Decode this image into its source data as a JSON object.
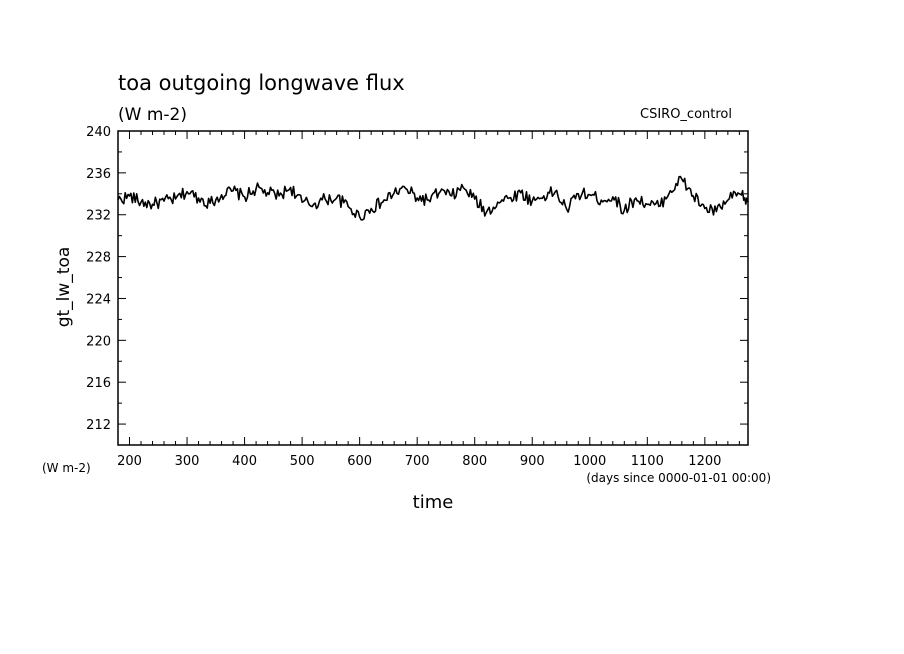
{
  "chart_data": {
    "type": "line",
    "title": "toa outgoing longwave flux",
    "subtitle": "(W m-2)",
    "annotation": "CSIRO_control",
    "ylabel": "gt_lw_toa",
    "yunit": "(W m-2)",
    "xlabel": "time",
    "xunit": "(days since 0000-01-01 00:00)",
    "xlim": [
      180,
      1275
    ],
    "ylim": [
      210,
      240
    ],
    "xticks": [
      200,
      300,
      400,
      500,
      600,
      700,
      800,
      900,
      1000,
      1100,
      1200
    ],
    "yticks": [
      212,
      216,
      220,
      224,
      228,
      232,
      236,
      240
    ],
    "grid": false,
    "line_color": "#000000",
    "series": [
      {
        "x": [
          180,
          200,
          220,
          240,
          260,
          280,
          300,
          320,
          340,
          360,
          380,
          400,
          420,
          440,
          460,
          480,
          500,
          520,
          540,
          560,
          580,
          600,
          620,
          640,
          660,
          680,
          700,
          720,
          740,
          760,
          780,
          800,
          820,
          840,
          860,
          880,
          900,
          920,
          940,
          960,
          980,
          1000,
          1020,
          1040,
          1060,
          1080,
          1100,
          1120,
          1140,
          1160,
          1180,
          1200,
          1220,
          1240,
          1260,
          1275
        ],
        "y": [
          233.4,
          233.8,
          233.2,
          233.0,
          233.3,
          233.5,
          234.2,
          233.6,
          233.1,
          233.9,
          234.3,
          233.7,
          234.5,
          234.1,
          233.8,
          234.6,
          233.2,
          233.0,
          233.5,
          233.6,
          232.8,
          231.8,
          232.6,
          233.2,
          234.1,
          234.5,
          233.6,
          233.4,
          234.2,
          233.8,
          234.6,
          233.5,
          232.2,
          233.2,
          233.6,
          234.1,
          233.3,
          233.8,
          234.2,
          232.5,
          234.0,
          233.9,
          233.4,
          233.7,
          232.4,
          233.6,
          233.0,
          232.8,
          234.3,
          235.4,
          233.8,
          232.6,
          232.3,
          233.4,
          234.0,
          233.2
        ]
      }
    ]
  }
}
